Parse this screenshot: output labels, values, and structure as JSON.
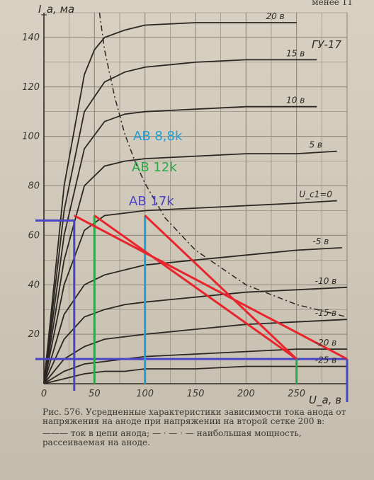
{
  "header": {
    "corner_text": "менее     11"
  },
  "caption": {
    "figure_text": "Рис. 576. Усредненные характеристики зависимости тока анода от напряжения на аноде при напряжении на второй сетке 200 в:",
    "legend_text": "——— ток в цепи анода;  — · — · — наибольшая мощность, рассеиваемая на аноде."
  },
  "chart_data": {
    "type": "line",
    "title": "ГУ-17",
    "xlabel": "U_a, в",
    "ylabel": "I_a, ма",
    "xlim": [
      0,
      300
    ],
    "ylim": [
      0,
      150
    ],
    "x_ticks": [
      "0",
      "50",
      "100",
      "150",
      "200",
      "250"
    ],
    "y_ticks": [
      "20",
      "40",
      "60",
      "80",
      "100",
      "120",
      "140"
    ],
    "grid": true,
    "series": [
      {
        "name": "20 в",
        "x": [
          0,
          20,
          40,
          50,
          60,
          80,
          100,
          150,
          200,
          250
        ],
        "y": [
          0,
          80,
          125,
          135,
          140,
          143,
          145,
          146,
          146,
          146
        ]
      },
      {
        "name": "15 в",
        "x": [
          0,
          20,
          40,
          60,
          80,
          100,
          150,
          200,
          250,
          270
        ],
        "y": [
          0,
          70,
          110,
          122,
          126,
          128,
          130,
          131,
          131,
          131
        ]
      },
      {
        "name": "10 в",
        "x": [
          0,
          20,
          40,
          60,
          80,
          100,
          150,
          200,
          250,
          270
        ],
        "y": [
          0,
          60,
          95,
          106,
          109,
          110,
          111,
          112,
          112,
          112
        ]
      },
      {
        "name": "5 в",
        "x": [
          0,
          20,
          40,
          60,
          80,
          100,
          150,
          200,
          250,
          290
        ],
        "y": [
          0,
          50,
          80,
          88,
          90,
          91,
          92,
          93,
          93,
          94
        ]
      },
      {
        "name": "U_c1=0",
        "x": [
          0,
          20,
          40,
          60,
          80,
          100,
          150,
          200,
          250,
          290
        ],
        "y": [
          0,
          40,
          62,
          68,
          69,
          70,
          71,
          72,
          73,
          74
        ]
      },
      {
        "name": "-5 в",
        "x": [
          0,
          20,
          40,
          60,
          80,
          100,
          150,
          200,
          250,
          295
        ],
        "y": [
          0,
          28,
          40,
          44,
          46,
          48,
          50,
          52,
          54,
          55
        ]
      },
      {
        "name": "-10 в",
        "x": [
          0,
          20,
          40,
          60,
          80,
          100,
          150,
          200,
          250,
          300
        ],
        "y": [
          0,
          18,
          27,
          30,
          32,
          33,
          35,
          37,
          38,
          39
        ]
      },
      {
        "name": "-15 в",
        "x": [
          0,
          20,
          40,
          60,
          80,
          100,
          150,
          200,
          250,
          300
        ],
        "y": [
          0,
          10,
          15,
          18,
          19,
          20,
          22,
          24,
          25,
          26
        ]
      },
      {
        "name": "-20 в",
        "x": [
          0,
          20,
          40,
          60,
          80,
          100,
          150,
          200,
          250,
          300
        ],
        "y": [
          0,
          5,
          8,
          9,
          10,
          11,
          12,
          13,
          14,
          14
        ]
      },
      {
        "name": "-25 в",
        "x": [
          0,
          20,
          40,
          60,
          80,
          100,
          150,
          200,
          250,
          300
        ],
        "y": [
          0,
          2,
          4,
          5,
          5,
          6,
          6,
          7,
          7,
          7
        ]
      }
    ],
    "max_power_curve": {
      "x": [
        55,
        60,
        70,
        80,
        90,
        100,
        120,
        150,
        200,
        250,
        300
      ],
      "y": [
        150,
        135,
        116,
        101,
        90,
        81,
        67,
        54,
        40,
        32,
        27
      ]
    },
    "annotations": {
      "load_lines": [
        {
          "label": "AB 8,8k",
          "color": "#1e9fd6"
        },
        {
          "label": "AB 12k",
          "color": "#2aa84a"
        },
        {
          "label": "AB 17k",
          "color": "#4a44c6"
        }
      ],
      "load_line_color": "#e8242c",
      "blue_level_y": 66,
      "lower_level_y": 10,
      "end_x": 300,
      "end_x_250": 250,
      "knee_points": [
        {
          "x": 50,
          "y": 68,
          "color": "#2aa84a"
        },
        {
          "x": 100,
          "y": 68,
          "color": "#1e9fd6"
        },
        {
          "x": 30,
          "y": 66,
          "color": "#4a44c6"
        }
      ]
    }
  }
}
